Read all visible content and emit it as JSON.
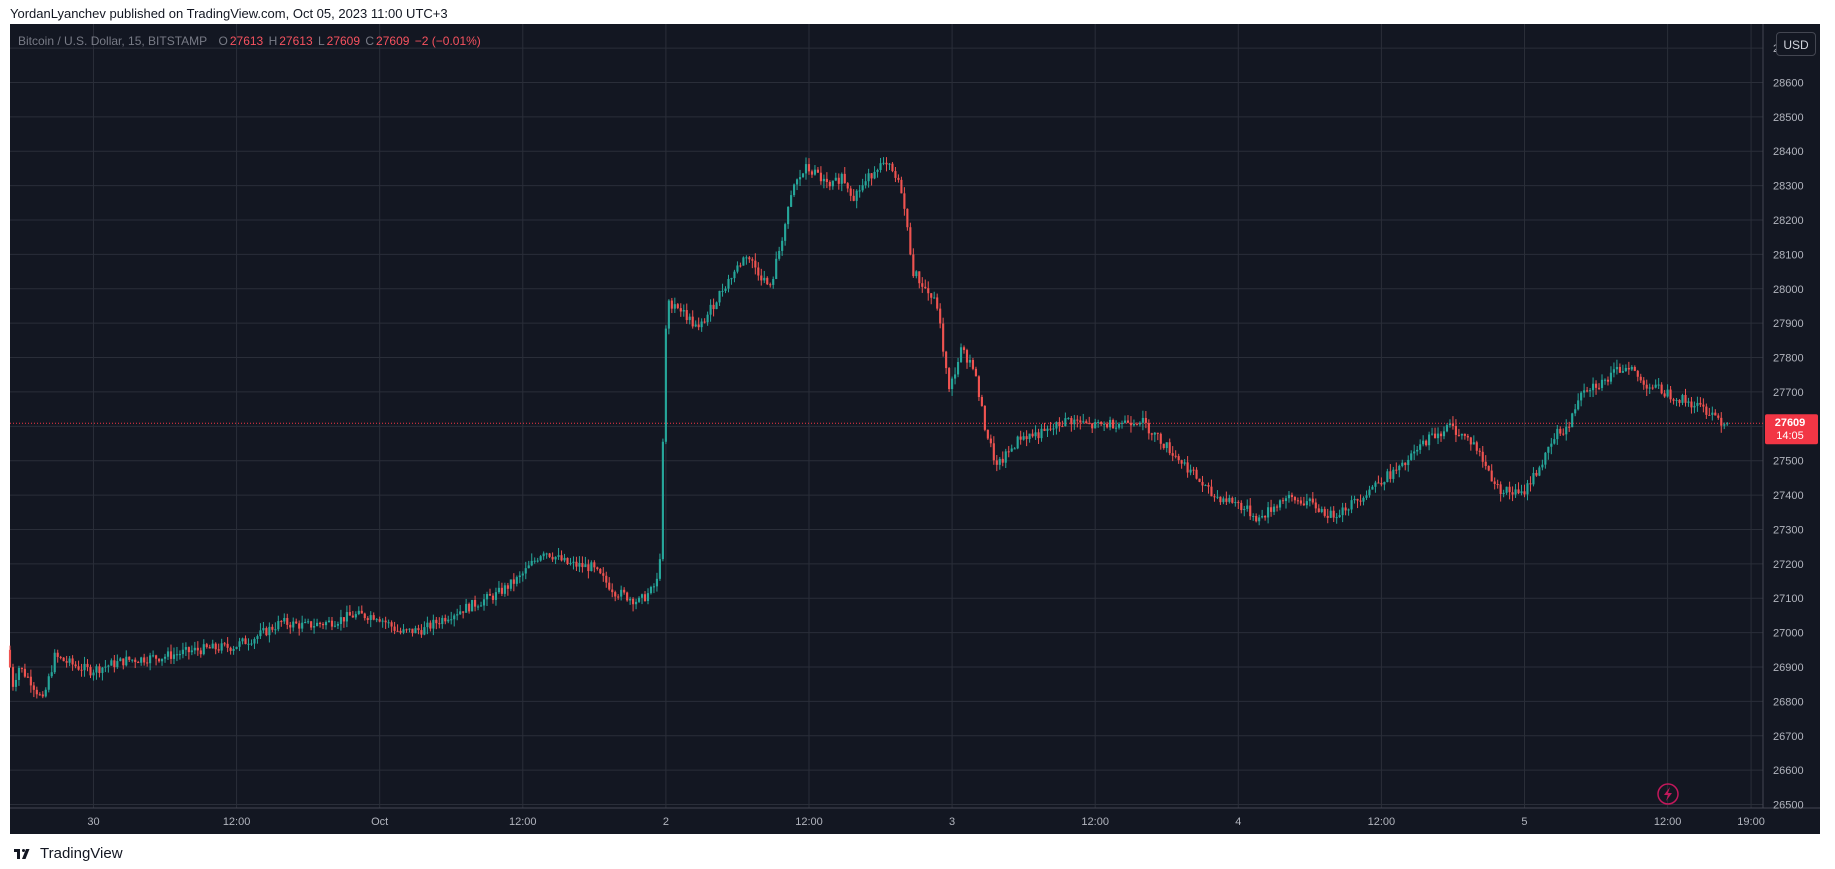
{
  "publish_line": "YordanLyanchev published on TradingView.com, Oct 05, 2023 11:00 UTC+3",
  "symbol_bar": {
    "symbol": "Bitcoin / U.S. Dollar, 15, BITSTAMP",
    "o_label": "O",
    "o_value": "27613",
    "h_label": "H",
    "h_value": "27613",
    "l_label": "L",
    "l_value": "27609",
    "c_label": "C",
    "c_value": "27609",
    "change": "−2 (−0.01%)"
  },
  "currency_button": "USD",
  "price_tag": {
    "price": "27609",
    "countdown": "14:05"
  },
  "footer_brand": "TradingView",
  "colors": {
    "background": "#131722",
    "grid": "#2a2e39",
    "up": "#26a69a",
    "down": "#ef5350",
    "axis_text": "#b2b5be",
    "price_tag": "#f23645"
  },
  "icons": {
    "footer_logo": "tradingview-logo-icon",
    "replay": "lightning-icon"
  },
  "chart_data": {
    "type": "candlestick",
    "title": "Bitcoin / U.S. Dollar, 15, BITSTAMP",
    "ylim": [
      26490,
      28770
    ],
    "y_ticks": [
      26500,
      26600,
      26700,
      26800,
      26900,
      27000,
      27100,
      27200,
      27300,
      27400,
      27500,
      27600,
      27700,
      27800,
      27900,
      28000,
      28100,
      28200,
      28300,
      28400,
      28500,
      28600,
      28700
    ],
    "x_ticks": [
      {
        "label": "30",
        "t": 0
      },
      {
        "label": "12:00",
        "t": 12
      },
      {
        "label": "Oct",
        "t": 24
      },
      {
        "label": "12:00",
        "t": 36
      },
      {
        "label": "2",
        "t": 48
      },
      {
        "label": "12:00",
        "t": 60
      },
      {
        "label": "3",
        "t": 72
      },
      {
        "label": "12:00",
        "t": 84
      },
      {
        "label": "4",
        "t": 96
      },
      {
        "label": "12:00",
        "t": 108
      },
      {
        "label": "5",
        "t": 120
      },
      {
        "label": "12:00",
        "t": 132
      },
      {
        "label": "19:00",
        "t": 139
      }
    ],
    "x_start_hours": -7,
    "last_price": 27609,
    "grid": true,
    "price_path": [
      [
        -7,
        26950
      ],
      [
        -6.5,
        26850
      ],
      [
        -6,
        26900
      ],
      [
        -5,
        26860
      ],
      [
        -4,
        26800
      ],
      [
        -3,
        26930
      ],
      [
        -1,
        26900
      ],
      [
        0,
        26890
      ],
      [
        3,
        26920
      ],
      [
        6,
        26930
      ],
      [
        9,
        26950
      ],
      [
        12,
        26960
      ],
      [
        14,
        26990
      ],
      [
        16,
        27030
      ],
      [
        18,
        27020
      ],
      [
        20,
        27030
      ],
      [
        22,
        27050
      ],
      [
        24,
        27050
      ],
      [
        26,
        27000
      ],
      [
        28,
        27010
      ],
      [
        30,
        27050
      ],
      [
        32,
        27080
      ],
      [
        34,
        27110
      ],
      [
        36,
        27160
      ],
      [
        38,
        27240
      ],
      [
        40,
        27200
      ],
      [
        42,
        27190
      ],
      [
        44,
        27120
      ],
      [
        46,
        27090
      ],
      [
        47,
        27120
      ],
      [
        47.7,
        27160
      ],
      [
        48.3,
        27950
      ],
      [
        49,
        27960
      ],
      [
        51,
        27880
      ],
      [
        53,
        28000
      ],
      [
        55,
        28100
      ],
      [
        56,
        28050
      ],
      [
        57,
        28000
      ],
      [
        58,
        28150
      ],
      [
        59,
        28300
      ],
      [
        60,
        28350
      ],
      [
        61,
        28330
      ],
      [
        62,
        28290
      ],
      [
        63,
        28330
      ],
      [
        64,
        28270
      ],
      [
        65,
        28310
      ],
      [
        66,
        28360
      ],
      [
        67,
        28350
      ],
      [
        68,
        28290
      ],
      [
        69,
        28050
      ],
      [
        70,
        28000
      ],
      [
        71,
        27950
      ],
      [
        72,
        27700
      ],
      [
        73,
        27820
      ],
      [
        74,
        27780
      ],
      [
        75,
        27600
      ],
      [
        76,
        27480
      ],
      [
        78,
        27570
      ],
      [
        80,
        27580
      ],
      [
        82,
        27620
      ],
      [
        84,
        27600
      ],
      [
        86,
        27610
      ],
      [
        88,
        27620
      ],
      [
        90,
        27550
      ],
      [
        92,
        27480
      ],
      [
        94,
        27400
      ],
      [
        96,
        27380
      ],
      [
        98,
        27330
      ],
      [
        100,
        27390
      ],
      [
        102,
        27380
      ],
      [
        104,
        27340
      ],
      [
        106,
        27380
      ],
      [
        108,
        27440
      ],
      [
        110,
        27480
      ],
      [
        112,
        27560
      ],
      [
        114,
        27600
      ],
      [
        116,
        27550
      ],
      [
        118,
        27420
      ],
      [
        120,
        27400
      ],
      [
        122,
        27510
      ],
      [
        123,
        27580
      ],
      [
        124,
        27600
      ],
      [
        125,
        27710
      ],
      [
        127,
        27730
      ],
      [
        128,
        27760
      ],
      [
        129,
        27780
      ],
      [
        130,
        27730
      ],
      [
        132,
        27700
      ],
      [
        134,
        27670
      ],
      [
        136,
        27640
      ],
      [
        137,
        27609
      ]
    ]
  }
}
